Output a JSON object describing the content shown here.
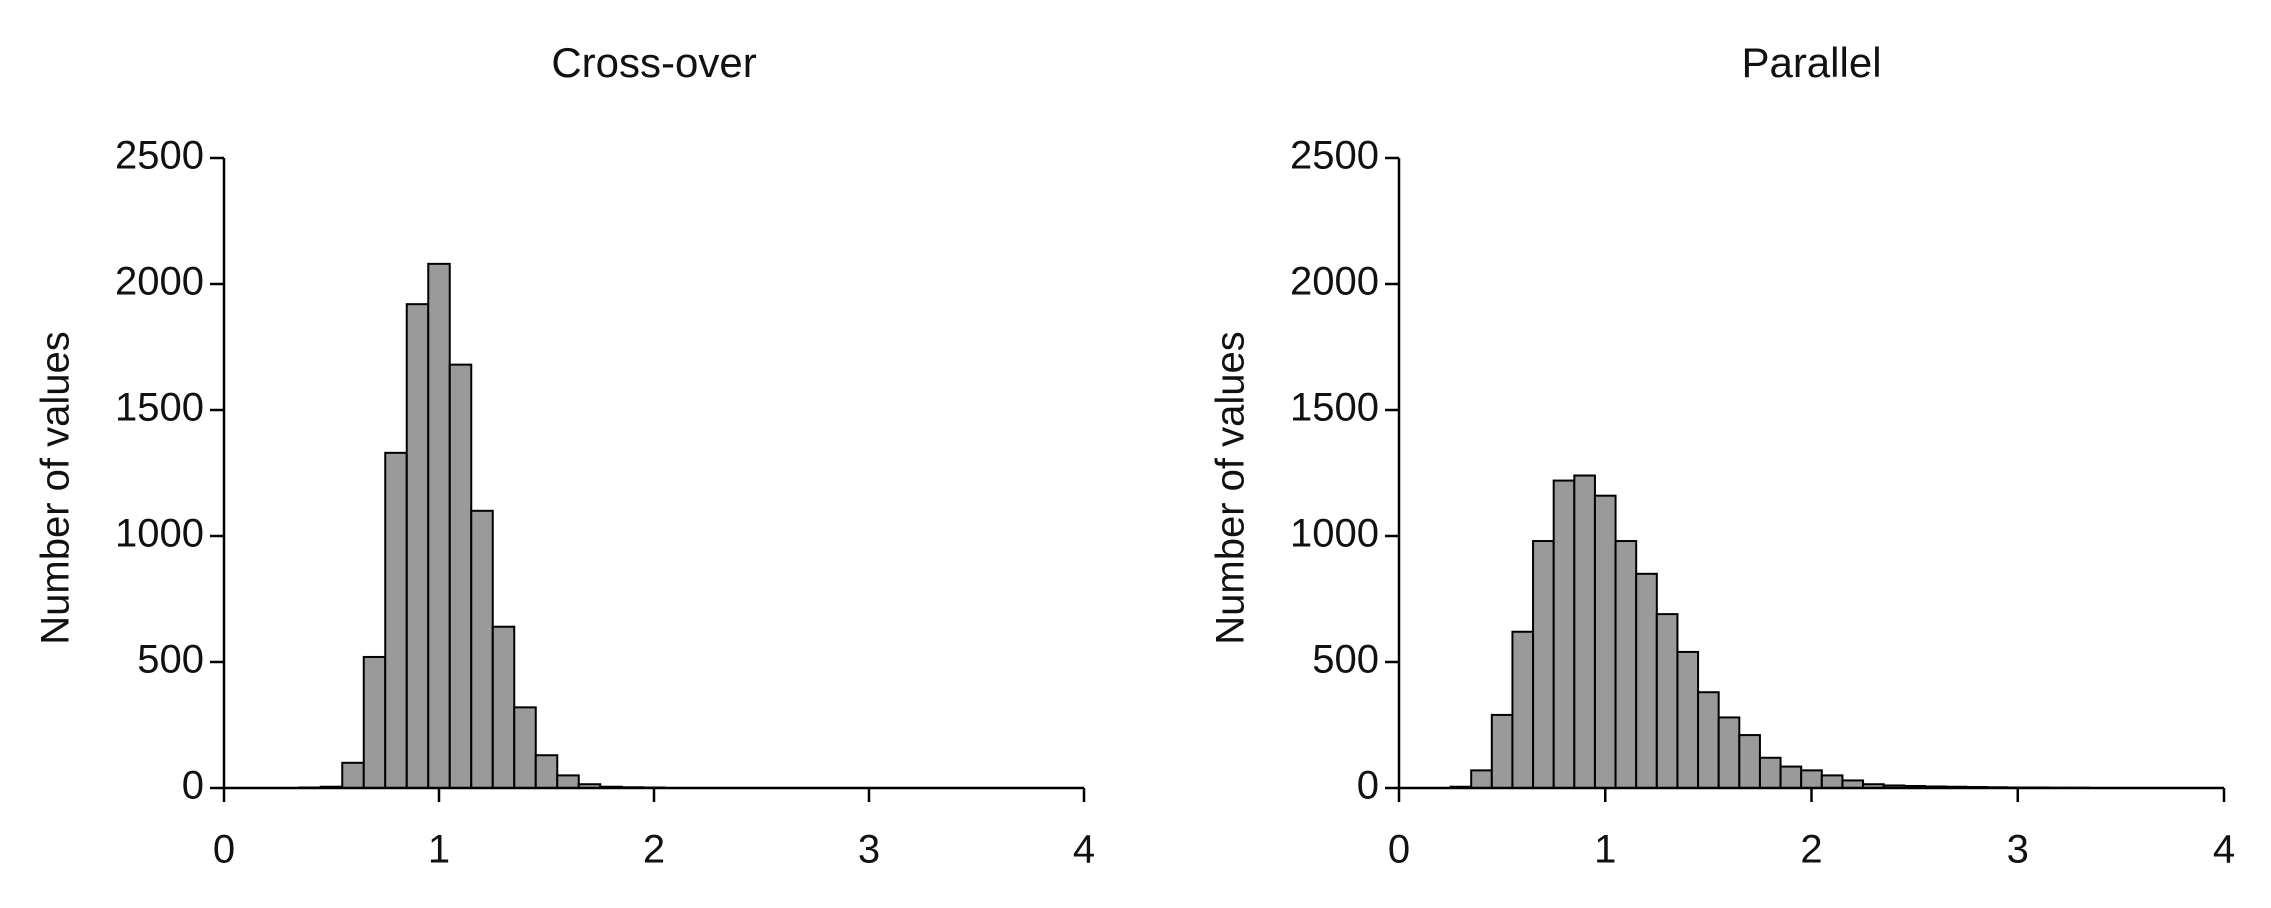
{
  "chart_data": [
    {
      "type": "histogram",
      "title": "Cross-over",
      "ylabel": "Number of values",
      "color": "#9a9a9a",
      "bins": [
        0.35,
        0.45,
        0.55,
        0.65,
        0.75,
        0.85,
        0.95,
        1.05,
        1.15,
        1.25,
        1.35,
        1.45,
        1.55,
        1.65,
        1.75,
        1.85,
        1.95,
        2.05
      ],
      "values": [
        2,
        5,
        100,
        520,
        1330,
        1920,
        2080,
        1680,
        1100,
        640,
        320,
        130,
        50,
        15,
        5,
        3,
        2
      ],
      "xlim": [
        0,
        4
      ],
      "xticks": [
        0,
        1,
        2,
        3,
        4
      ],
      "ylim": [
        0,
        2500
      ],
      "yticks": [
        0,
        500,
        1000,
        1500,
        2000,
        2500
      ]
    },
    {
      "type": "histogram",
      "title": "Parallel",
      "ylabel": "Number of values",
      "color": "#9a9a9a",
      "bins": [
        0.25,
        0.35,
        0.45,
        0.55,
        0.65,
        0.75,
        0.85,
        0.95,
        1.05,
        1.15,
        1.25,
        1.35,
        1.45,
        1.55,
        1.65,
        1.75,
        1.85,
        1.95,
        2.05,
        2.15,
        2.25,
        2.35,
        2.45,
        2.55,
        2.65,
        2.75,
        2.85,
        2.95,
        3.05,
        3.15,
        3.25,
        3.35
      ],
      "values": [
        5,
        70,
        290,
        620,
        980,
        1220,
        1240,
        1160,
        980,
        850,
        690,
        540,
        380,
        280,
        210,
        120,
        85,
        70,
        50,
        30,
        15,
        10,
        8,
        6,
        5,
        4,
        3,
        2,
        2,
        1,
        1
      ],
      "xlim": [
        0,
        4
      ],
      "xticks": [
        0,
        1,
        2,
        3,
        4
      ],
      "ylim": [
        0,
        2500
      ],
      "yticks": [
        0,
        500,
        1000,
        1500,
        2000,
        2500
      ]
    }
  ]
}
